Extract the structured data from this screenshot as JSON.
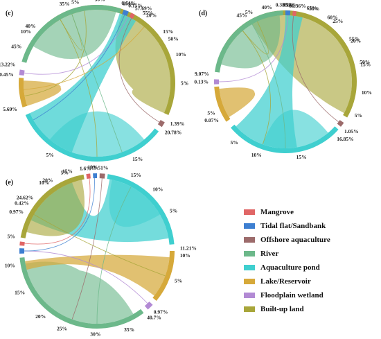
{
  "colors": {
    "mangrove": "#e06666",
    "tidal": "#3d7fd1",
    "offshore": "#9c6b6b",
    "river": "#6cb88a",
    "aquaculture": "#3fcfcf",
    "lake": "#d6a93a",
    "floodplain": "#b28ad4",
    "builtup": "#a8a63a"
  },
  "legend": [
    {
      "label": "Mangrove",
      "color": "#e06666"
    },
    {
      "label": "Tidal flat/Sandbank",
      "color": "#3d7fd1"
    },
    {
      "label": "Offshore aquaculture",
      "color": "#9c6b6b"
    },
    {
      "label": "River",
      "color": "#6cb88a"
    },
    {
      "label": "Aquaculture pond",
      "color": "#3fcfcf"
    },
    {
      "label": "Lake/Reservoir",
      "color": "#d6a93a"
    },
    {
      "label": "Floodplain wetland",
      "color": "#b28ad4"
    },
    {
      "label": "Built-up land",
      "color": "#a8a63a"
    }
  ],
  "panels": [
    {
      "id": "c",
      "label": "(c)",
      "arcs": [
        {
          "cls": "builtup",
          "a0": 320,
          "a1": 474
        },
        {
          "cls": "offshore",
          "a0": 480,
          "a1": 484
        },
        {
          "cls": "aquaculture",
          "a0": 488,
          "a1": 606
        },
        {
          "cls": "lake",
          "a0": 612,
          "a1": 634
        },
        {
          "cls": "floodplain",
          "a0": 636,
          "a1": 640
        },
        {
          "cls": "river",
          "a0": 646,
          "a1": 738
        },
        {
          "cls": "tidal",
          "a0": 740,
          "a1": 744
        },
        {
          "cls": "mangrove",
          "a0": 746,
          "a1": 749
        }
      ],
      "chords": [
        {
          "cls": "builtup",
          "a0": 380,
          "a1": 474,
          "b0": 452,
          "b1": 470,
          "o": 0.62
        },
        {
          "cls": "aquaculture",
          "a0": 560,
          "a1": 606,
          "b0": 738,
          "b1": 752,
          "o": 0.75
        },
        {
          "cls": "river",
          "a0": 660,
          "a1": 735,
          "b0": 660,
          "b1": 710,
          "o": 0.62
        },
        {
          "cls": "lake",
          "a0": 612,
          "a1": 632,
          "b0": 616,
          "b1": 630,
          "o": 0.72
        },
        {
          "cls": "aquaculture",
          "a0": 500,
          "a1": 555,
          "b0": 520,
          "b1": 580,
          "o": 0.62
        }
      ],
      "lines": [
        {
          "cls": "builtup",
          "a": 330,
          "b": 540
        },
        {
          "cls": "builtup",
          "a": 340,
          "b": 690
        },
        {
          "cls": "builtup",
          "a": 350,
          "b": 620
        },
        {
          "cls": "offshore",
          "a": 482,
          "b": 748
        },
        {
          "cls": "floodplain",
          "a": 638,
          "b": 745
        },
        {
          "cls": "tidal",
          "a": 742,
          "b": 600
        },
        {
          "cls": "river",
          "a": 700,
          "b": 520
        },
        {
          "cls": "lake",
          "a": 625,
          "b": 760
        }
      ],
      "labels": [
        {
          "t": "30%",
          "a": 362
        },
        {
          "t": "25%",
          "a": 378
        },
        {
          "t": "20%",
          "a": 396
        },
        {
          "t": "15%",
          "a": 412
        },
        {
          "t": "10%",
          "a": 430
        },
        {
          "t": "5%",
          "a": 450
        },
        {
          "t": "1.39%",
          "a": 479
        },
        {
          "t": "20.78%",
          "a": 486
        },
        {
          "t": "15%",
          "a": 515
        },
        {
          "t": "10%",
          "a": 543
        },
        {
          "t": "5%",
          "a": 571
        },
        {
          "t": "5.69%",
          "a": 612
        },
        {
          "t": "0.45%",
          "a": 636
        },
        {
          "t": "13.22%",
          "a": 643
        },
        {
          "t": "10%",
          "a": 668
        },
        {
          "t": "5%",
          "a": 705
        },
        {
          "t": "0.64%",
          "a": 737
        },
        {
          "t": "0.15%",
          "a": 742
        },
        {
          "t": "57.69%",
          "a": 747
        },
        {
          "t": "55%",
          "a": 753
        },
        {
          "t": "50%",
          "a": 778
        },
        {
          "t": "45%",
          "a": 296
        },
        {
          "t": "40%",
          "a": 313
        },
        {
          "t": "35%",
          "a": 341
        }
      ]
    },
    {
      "id": "d",
      "label": "(d)",
      "arcs": [
        {
          "cls": "builtup",
          "a0": 304,
          "a1": 480
        },
        {
          "cls": "offshore",
          "a0": 485,
          "a1": 489
        },
        {
          "cls": "aquaculture",
          "a0": 492,
          "a1": 590
        },
        {
          "cls": "lake",
          "a0": 596,
          "a1": 626
        },
        {
          "cls": "floodplain",
          "a0": 628,
          "a1": 632
        },
        {
          "cls": "river",
          "a0": 638,
          "a1": 718
        },
        {
          "cls": "tidal",
          "a0": 720,
          "a1": 724
        },
        {
          "cls": "mangrove",
          "a0": 726,
          "a1": 729
        }
      ],
      "chords": [
        {
          "cls": "builtup",
          "a0": 330,
          "a1": 478,
          "b0": 460,
          "b1": 478,
          "o": 0.62
        },
        {
          "cls": "aquaculture",
          "a0": 530,
          "a1": 588,
          "b0": 720,
          "b1": 735,
          "o": 0.72
        },
        {
          "cls": "river",
          "a0": 645,
          "a1": 715,
          "b0": 650,
          "b1": 700,
          "o": 0.62
        },
        {
          "cls": "lake",
          "a0": 598,
          "a1": 624,
          "b0": 600,
          "b1": 622,
          "o": 0.72
        },
        {
          "cls": "aquaculture",
          "a0": 500,
          "a1": 528,
          "b0": 510,
          "b1": 560,
          "o": 0.62
        }
      ],
      "lines": [
        {
          "cls": "builtup",
          "a": 320,
          "b": 560
        },
        {
          "cls": "builtup",
          "a": 335,
          "b": 680
        },
        {
          "cls": "offshore",
          "a": 487,
          "b": 727
        },
        {
          "cls": "floodplain",
          "a": 630,
          "b": 722
        },
        {
          "cls": "river",
          "a": 690,
          "b": 540
        }
      ],
      "labels": [
        {
          "t": "30%",
          "a": 378
        },
        {
          "t": "25%",
          "a": 398
        },
        {
          "t": "20%",
          "a": 418
        },
        {
          "t": "15%",
          "a": 437
        },
        {
          "t": "10%",
          "a": 458
        },
        {
          "t": "5%",
          "a": 476
        },
        {
          "t": "1.05%",
          "a": 490
        },
        {
          "t": "16.85%",
          "a": 498
        },
        {
          "t": "15%",
          "a": 528
        },
        {
          "t": "10%",
          "a": 558
        },
        {
          "t": "5%",
          "a": 578
        },
        {
          "t": "0.07%",
          "a": 600
        },
        {
          "t": "5%",
          "a": 606
        },
        {
          "t": "0.13%",
          "a": 630
        },
        {
          "t": "9.07%",
          "a": 636
        },
        {
          "t": "5%",
          "a": 695
        },
        {
          "t": "0.33%",
          "a": 718
        },
        {
          "t": "0.13%",
          "a": 723
        },
        {
          "t": "66.36%",
          "a": 729
        },
        {
          "t": "65%",
          "a": 736
        },
        {
          "t": "60%",
          "a": 753
        },
        {
          "t": "55%",
          "a": 776
        },
        {
          "t": "50%",
          "a": 795
        },
        {
          "t": "45%",
          "a": 330
        },
        {
          "t": "40%",
          "a": 346
        },
        {
          "t": "35%",
          "a": 362
        }
      ]
    },
    {
      "id": "e",
      "label": "(e)",
      "arcs": [
        {
          "cls": "mangrove",
          "a0": 352,
          "a1": 355
        },
        {
          "cls": "tidal",
          "a0": 357,
          "a1": 360
        },
        {
          "cls": "offshore",
          "a0": 362,
          "a1": 366
        },
        {
          "cls": "aquaculture",
          "a0": 368,
          "a1": 445
        },
        {
          "cls": "lake",
          "a0": 450,
          "a1": 490
        },
        {
          "cls": "floodplain",
          "a0": 494,
          "a1": 499
        },
        {
          "cls": "river",
          "a0": 503,
          "a1": 625
        },
        {
          "cls": "tidal",
          "a0": 628,
          "a1": 632
        },
        {
          "cls": "mangrove",
          "a0": 634,
          "a1": 637
        },
        {
          "cls": "builtup",
          "a0": 640,
          "a1": 710
        }
      ],
      "chords": [
        {
          "cls": "aquaculture",
          "a0": 370,
          "a1": 440,
          "b0": 655,
          "b1": 700,
          "o": 0.72
        },
        {
          "cls": "river",
          "a0": 510,
          "a1": 620,
          "b0": 530,
          "b1": 610,
          "o": 0.62
        },
        {
          "cls": "lake",
          "a0": 455,
          "a1": 488,
          "b0": 615,
          "b1": 622,
          "o": 0.72
        },
        {
          "cls": "builtup",
          "a0": 645,
          "a1": 705,
          "b0": 680,
          "b1": 708,
          "o": 0.62
        },
        {
          "cls": "aquaculture",
          "a0": 372,
          "a1": 400,
          "b0": 380,
          "b1": 420,
          "o": 0.55
        }
      ],
      "lines": [
        {
          "cls": "offshore",
          "a": 364,
          "b": 560
        },
        {
          "cls": "river",
          "a": 540,
          "b": 388
        },
        {
          "cls": "floodplain",
          "a": 496,
          "b": 630
        },
        {
          "cls": "builtup",
          "a": 660,
          "b": 470
        },
        {
          "cls": "mangrove",
          "a": 354,
          "b": 636
        },
        {
          "cls": "tidal",
          "a": 358,
          "b": 630
        }
      ],
      "labels": [
        {
          "t": "1.6%",
          "a": 352
        },
        {
          "t": "19.51%",
          "a": 362
        },
        {
          "t": "15%",
          "a": 384
        },
        {
          "t": "10%",
          "a": 402
        },
        {
          "t": "5%",
          "a": 421
        },
        {
          "t": "11.21%",
          "a": 448
        },
        {
          "t": "10%",
          "a": 453
        },
        {
          "t": "5%",
          "a": 471
        },
        {
          "t": "0.97%",
          "a": 497
        },
        {
          "t": "40.7%",
          "a": 503
        },
        {
          "t": "35%",
          "a": 521
        },
        {
          "t": "30%",
          "a": 541
        },
        {
          "t": "25%",
          "a": 561
        },
        {
          "t": "20%",
          "a": 578
        },
        {
          "t": "15%",
          "a": 600
        },
        {
          "t": "10%",
          "a": 620
        },
        {
          "t": "5%",
          "a": 640
        },
        {
          "t": "0.97%",
          "a": 658
        },
        {
          "t": "0.42%",
          "a": 665
        },
        {
          "t": "24.62%",
          "a": 670
        },
        {
          "t": "20%",
          "a": 688
        },
        {
          "t": "15%",
          "a": 703
        },
        {
          "t": "10%",
          "a": 325
        },
        {
          "t": "5%",
          "a": 340
        }
      ]
    }
  ]
}
